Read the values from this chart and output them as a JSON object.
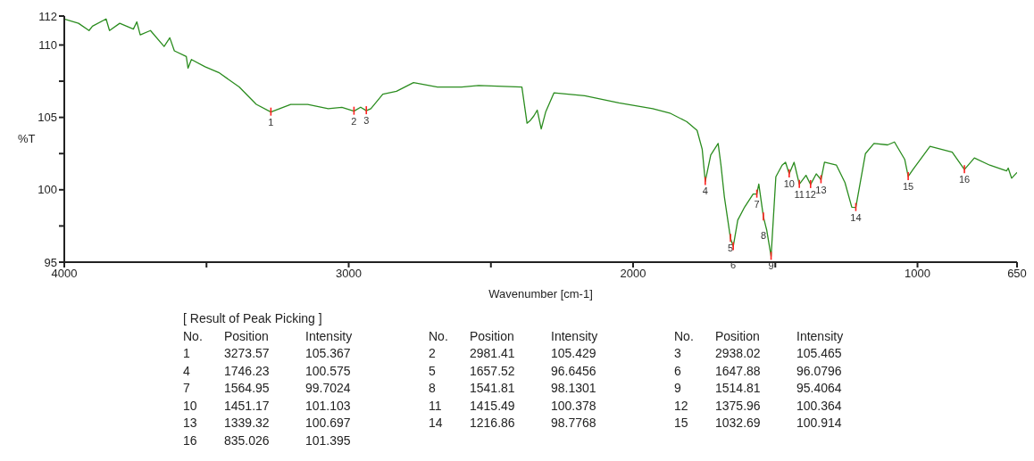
{
  "chart_data": {
    "type": "line",
    "xlabel": "Wavenumber [cm-1]",
    "ylabel": "%T",
    "xlim": [
      4000,
      650
    ],
    "xticks": [
      4000,
      {
        "value": 3500,
        "label": null
      },
      3000,
      {
        "value": 2500,
        "label": null
      },
      2000,
      {
        "value": 1500,
        "label": null
      },
      1000,
      650
    ],
    "ylim": [
      95,
      112
    ],
    "yticks": [
      95,
      {
        "value": 97.5,
        "label": null
      },
      100,
      {
        "value": 102.5,
        "label": null
      },
      105,
      {
        "value": 107.5,
        "label": null
      },
      110,
      112
    ],
    "grid": false,
    "legend": false,
    "marker": "none",
    "line_style": "solid",
    "annotations": [
      {
        "text": "1",
        "x": 3273.57,
        "y": 105.367
      },
      {
        "text": "2",
        "x": 2981.41,
        "y": 105.429
      },
      {
        "text": "3",
        "x": 2938.02,
        "y": 105.465
      },
      {
        "text": "4",
        "x": 1746.23,
        "y": 100.575
      },
      {
        "text": "5",
        "x": 1657.52,
        "y": 96.6456
      },
      {
        "text": "6",
        "x": 1647.88,
        "y": 96.0796
      },
      {
        "text": "7",
        "x": 1564.95,
        "y": 99.7024
      },
      {
        "text": "8",
        "x": 1541.81,
        "y": 98.1301
      },
      {
        "text": "9",
        "x": 1514.81,
        "y": 95.4064
      },
      {
        "text": "10",
        "x": 1451.17,
        "y": 101.103
      },
      {
        "text": "11",
        "x": 1415.49,
        "y": 100.378
      },
      {
        "text": "12",
        "x": 1375.96,
        "y": 100.364
      },
      {
        "text": "13",
        "x": 1339.32,
        "y": 100.697
      },
      {
        "text": "14",
        "x": 1216.86,
        "y": 98.7768
      },
      {
        "text": "15",
        "x": 1032.69,
        "y": 100.914
      },
      {
        "text": "16",
        "x": 835.026,
        "y": 101.395
      },
      "[ Result of Peak Picking ]",
      "No.",
      "Position",
      "Intensity",
      "No.",
      "Position",
      "Intensity",
      "No.",
      "Position",
      "Intensity",
      "1",
      "3273.57",
      "105.367",
      "2",
      "2981.41",
      "105.429",
      "3",
      "2938.02",
      "105.465",
      "4",
      "1746.23",
      "100.575",
      "5",
      "1657.52",
      "96.6456",
      "6",
      "1647.88",
      "96.0796",
      "7",
      "1564.95",
      "99.7024",
      "8",
      "1541.81",
      "98.1301",
      "9",
      "1514.81",
      "95.4064",
      "10",
      "1451.17",
      "101.103",
      "11",
      "1415.49",
      "100.378",
      "12",
      "1375.96",
      "100.364",
      "13",
      "1339.32",
      "100.697",
      "14",
      "1216.86",
      "98.7768",
      "15",
      "1032.69",
      "100.914",
      "16",
      "835.026",
      "101.395"
    ],
    "series": [
      {
        "color": "#2a8c1e",
        "x": [
          4000,
          3950,
          3913,
          3901,
          3853,
          3841,
          3805,
          3757,
          3745,
          3733,
          3697,
          3649,
          3629,
          3613,
          3571,
          3565,
          3553,
          3505,
          3457,
          3385,
          3325,
          3273.57,
          3204,
          3144,
          3072,
          3024,
          2981.41,
          2958,
          2938.02,
          2922,
          2880,
          2832,
          2772,
          2688,
          2603,
          2543,
          2391,
          2373,
          2361,
          2349,
          2337,
          2323,
          2307,
          2278,
          2170,
          2050,
          1931,
          1871,
          1811,
          1775,
          1757,
          1746.23,
          1727,
          1701,
          1691,
          1679,
          1657.52,
          1647.88,
          1632,
          1608,
          1578,
          1564.95,
          1558,
          1541.81,
          1530,
          1514.81,
          1498,
          1476,
          1464,
          1451.17,
          1434,
          1415.49,
          1392,
          1375.96,
          1356,
          1339.32,
          1327,
          1285,
          1255,
          1231,
          1216.86,
          1183,
          1153,
          1105,
          1081,
          1045,
          1032.69,
          1016,
          956,
          878,
          835.026,
          800,
          746,
          687,
          681,
          669,
          650
        ],
        "values": [
          111.8,
          111.5,
          111.0,
          111.3,
          111.8,
          111.0,
          111.5,
          111.1,
          111.6,
          110.7,
          111.0,
          109.9,
          110.5,
          109.6,
          109.2,
          108.4,
          109.0,
          108.5,
          108.1,
          107.1,
          105.9,
          105.367,
          105.9,
          105.9,
          105.6,
          105.7,
          105.429,
          105.7,
          105.465,
          105.6,
          106.6,
          106.8,
          107.4,
          107.1,
          107.1,
          107.2,
          107.1,
          104.6,
          104.8,
          105.1,
          105.5,
          104.2,
          105.4,
          106.7,
          106.5,
          106.0,
          105.6,
          105.3,
          104.7,
          104.1,
          102.8,
          100.575,
          102.4,
          103.2,
          101.7,
          99.5,
          96.6456,
          96.0796,
          97.9,
          98.8,
          99.7,
          99.7024,
          100.4,
          98.1301,
          97.2,
          95.4064,
          100.9,
          101.7,
          101.9,
          101.103,
          101.9,
          100.378,
          101.0,
          100.364,
          101.1,
          100.697,
          101.9,
          101.7,
          100.5,
          98.8,
          98.7768,
          102.5,
          103.2,
          103.1,
          103.3,
          102.1,
          100.914,
          101.4,
          103.0,
          102.6,
          101.395,
          102.2,
          101.7,
          101.3,
          101.5,
          100.8,
          101.2
        ]
      }
    ]
  }
}
